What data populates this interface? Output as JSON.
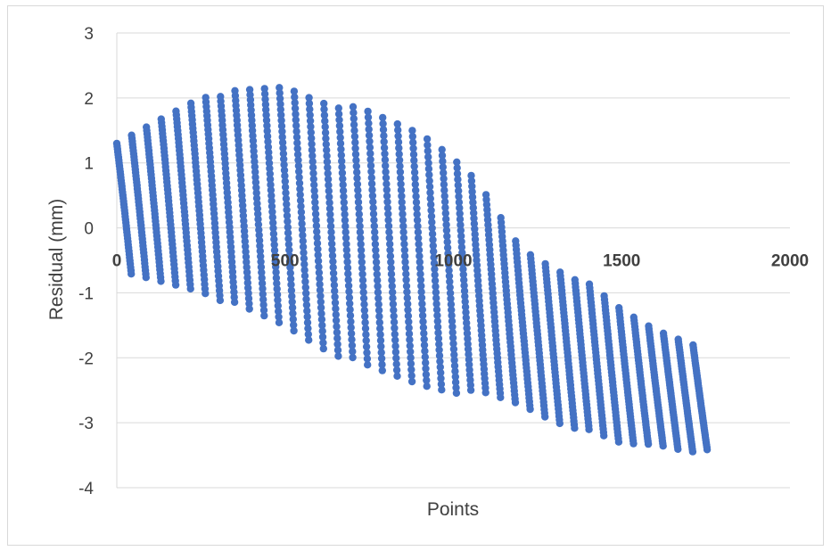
{
  "chart_data": {
    "type": "scatter",
    "title": "",
    "xlabel": "Points",
    "ylabel": "Residual (mm)",
    "xlim": [
      0,
      2000
    ],
    "ylim": [
      -4,
      3
    ],
    "xticks": [
      "0",
      "500",
      "1000",
      "1500",
      "2000"
    ],
    "yticks": [
      "3",
      "2",
      "1",
      "0",
      "-1",
      "-2",
      "-3",
      "-4"
    ],
    "grid": "horizontal",
    "legend": "none",
    "marker_color": "#4472C4",
    "point_count": 1755,
    "band_count": 40,
    "envelope": {
      "x": [
        0,
        250,
        500,
        600,
        750,
        900,
        1000,
        1100,
        1200,
        1300,
        1400,
        1500,
        1600,
        1700,
        1760
      ],
      "upper": [
        1.3,
        2.05,
        2.2,
        2.0,
        1.8,
        1.5,
        1.15,
        0.5,
        -0.3,
        -0.6,
        -0.85,
        -1.25,
        -1.55,
        -1.75,
        -1.85
      ],
      "lower": [
        -0.7,
        -1.0,
        -1.55,
        -1.85,
        -2.2,
        -2.45,
        -2.55,
        -2.6,
        -2.75,
        -3.0,
        -3.15,
        -3.35,
        -3.35,
        -3.45,
        -3.45
      ]
    }
  }
}
